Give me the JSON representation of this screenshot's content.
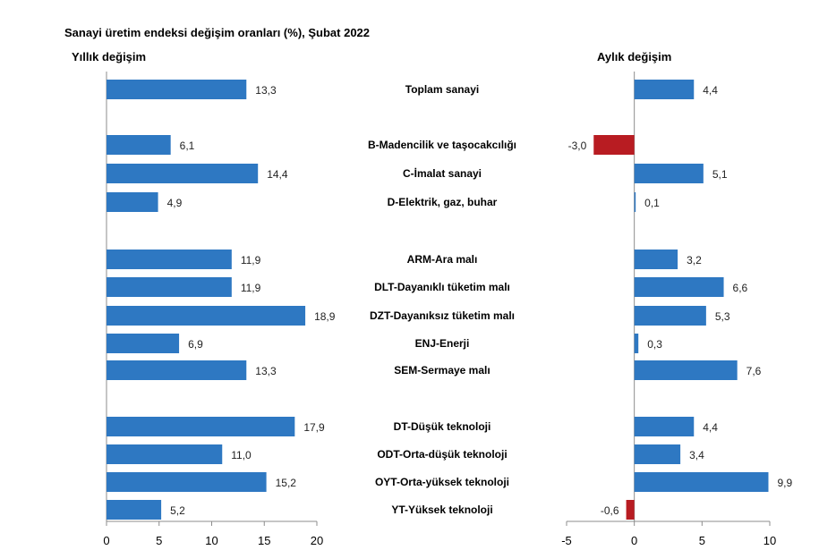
{
  "title": "Sanayi üretim endeksi değişim oranları (%), Şubat 2022",
  "colors": {
    "positive": "#2e78c2",
    "negative": "#b81c22",
    "axis": "#8c8c8c"
  },
  "chart_data": [
    {
      "type": "bar",
      "orientation": "horizontal",
      "title": "Yıllık değişim",
      "xlim": [
        0,
        20
      ],
      "ticks": [
        "0",
        "5",
        "10",
        "15",
        "20"
      ],
      "tick_values": [
        0,
        5,
        10,
        15,
        20
      ],
      "categories": [
        "Toplam sanayi",
        "B-Madencilik ve taşocakcılığı",
        "C-İmalat sanayi",
        "D-Elektrik, gaz, buhar",
        "ARM-Ara malı",
        "DLT-Dayanıklı tüketim malı",
        "DZT-Dayanıksız tüketim malı",
        "ENJ-Enerji",
        "SEM-Sermaye malı",
        "DT-Düşük teknoloji",
        "ODT-Orta-düşük teknoloji",
        "OYT-Orta-yüksek teknoloji",
        "YT-Yüksek teknoloji"
      ],
      "values": [
        13.3,
        6.1,
        14.4,
        4.9,
        11.9,
        11.9,
        18.9,
        6.9,
        13.3,
        17.9,
        11.0,
        15.2,
        5.2
      ],
      "labels": [
        "13,3",
        "6,1",
        "14,4",
        "4,9",
        "11,9",
        "11,9",
        "18,9",
        "6,9",
        "13,3",
        "17,9",
        "11,0",
        "15,2",
        "5,2"
      ]
    },
    {
      "type": "bar",
      "orientation": "horizontal",
      "title": "Aylık değişim",
      "xlim": [
        -5,
        10
      ],
      "ticks": [
        "-5",
        "0",
        "5",
        "10"
      ],
      "tick_values": [
        -5,
        0,
        5,
        10
      ],
      "categories": [
        "Toplam sanayi",
        "B-Madencilik ve taşocakcılığı",
        "C-İmalat sanayi",
        "D-Elektrik, gaz, buhar",
        "ARM-Ara malı",
        "DLT-Dayanıklı tüketim malı",
        "DZT-Dayanıksız tüketim malı",
        "ENJ-Enerji",
        "SEM-Sermaye malı",
        "DT-Düşük teknoloji",
        "ODT-Orta-düşük teknoloji",
        "OYT-Orta-yüksek teknoloji",
        "YT-Yüksek teknoloji"
      ],
      "values": [
        4.4,
        -3.0,
        5.1,
        0.1,
        3.2,
        6.6,
        5.3,
        0.3,
        7.6,
        4.4,
        3.4,
        9.9,
        -0.6
      ],
      "labels": [
        "4,4",
        "-3,0",
        "5,1",
        "0,1",
        "3,2",
        "6,6",
        "5,3",
        "0,3",
        "7,6",
        "4,4",
        "3,4",
        "9,9",
        "-0,6"
      ]
    }
  ]
}
